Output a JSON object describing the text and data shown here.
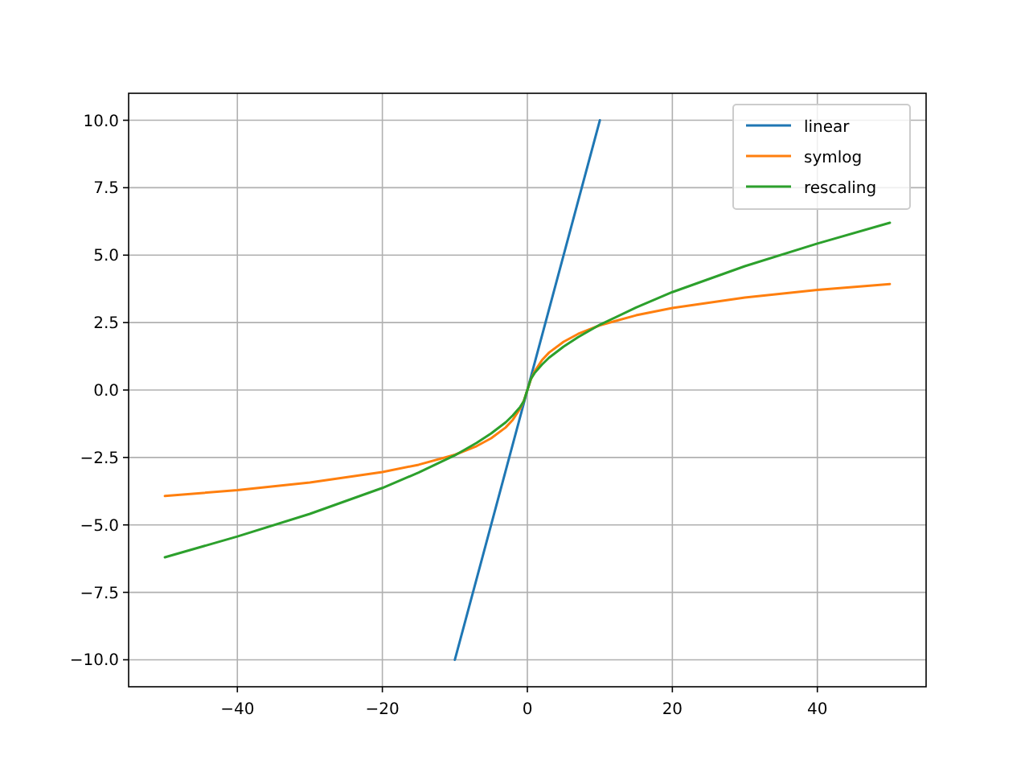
{
  "chart_data": {
    "type": "line",
    "xlim": [
      -55,
      55
    ],
    "ylim": [
      -11,
      11
    ],
    "xticks": [
      {
        "value": -40,
        "label": "−40"
      },
      {
        "value": -20,
        "label": "−20"
      },
      0,
      20,
      40
    ],
    "yticks": [
      {
        "value": -10,
        "label": "−10.0"
      },
      {
        "value": -7.5,
        "label": "−7.5"
      },
      {
        "value": -5,
        "label": "−5.0"
      },
      {
        "value": -2.5,
        "label": "−2.5"
      },
      {
        "value": 0,
        "label": "0.0"
      },
      {
        "value": 2.5,
        "label": "2.5"
      },
      {
        "value": 5,
        "label": "5.0"
      },
      {
        "value": 7.5,
        "label": "7.5"
      },
      {
        "value": 10,
        "label": "10.0"
      }
    ],
    "grid": true,
    "legend": "top right",
    "series": [
      {
        "name": "linear",
        "color": "#1f77b4",
        "x": [
          -10,
          10
        ],
        "values": [
          -10,
          10
        ]
      },
      {
        "name": "symlog",
        "color": "#ff7f0e",
        "x": [
          -50,
          -40,
          -30,
          -20,
          -15,
          -10,
          -7,
          -5,
          -3,
          -2,
          -1,
          -0.5,
          0,
          0.5,
          1,
          2,
          3,
          5,
          7,
          10,
          15,
          20,
          30,
          40,
          50
        ],
        "values": [
          -3.93,
          -3.71,
          -3.43,
          -3.04,
          -2.77,
          -2.4,
          -2.08,
          -1.79,
          -1.39,
          -1.1,
          -0.69,
          -0.41,
          0,
          0.41,
          0.69,
          1.1,
          1.39,
          1.79,
          2.08,
          2.4,
          2.77,
          3.04,
          3.43,
          3.71,
          3.93
        ]
      },
      {
        "name": "rescaling",
        "color": "#2ca02c",
        "x": [
          -50,
          -40,
          -30,
          -20,
          -15,
          -10,
          -7,
          -5,
          -3,
          -2,
          -1,
          -0.5,
          0,
          0.5,
          1,
          2,
          3,
          5,
          7,
          10,
          15,
          20,
          30,
          40,
          50
        ],
        "values": [
          -6.2,
          -5.43,
          -4.59,
          -3.63,
          -3.06,
          -2.42,
          -1.96,
          -1.61,
          -1.2,
          -0.94,
          -0.63,
          -0.42,
          0,
          0.42,
          0.63,
          0.94,
          1.2,
          1.61,
          1.96,
          2.42,
          3.06,
          3.63,
          4.59,
          5.43,
          6.2
        ]
      }
    ]
  }
}
